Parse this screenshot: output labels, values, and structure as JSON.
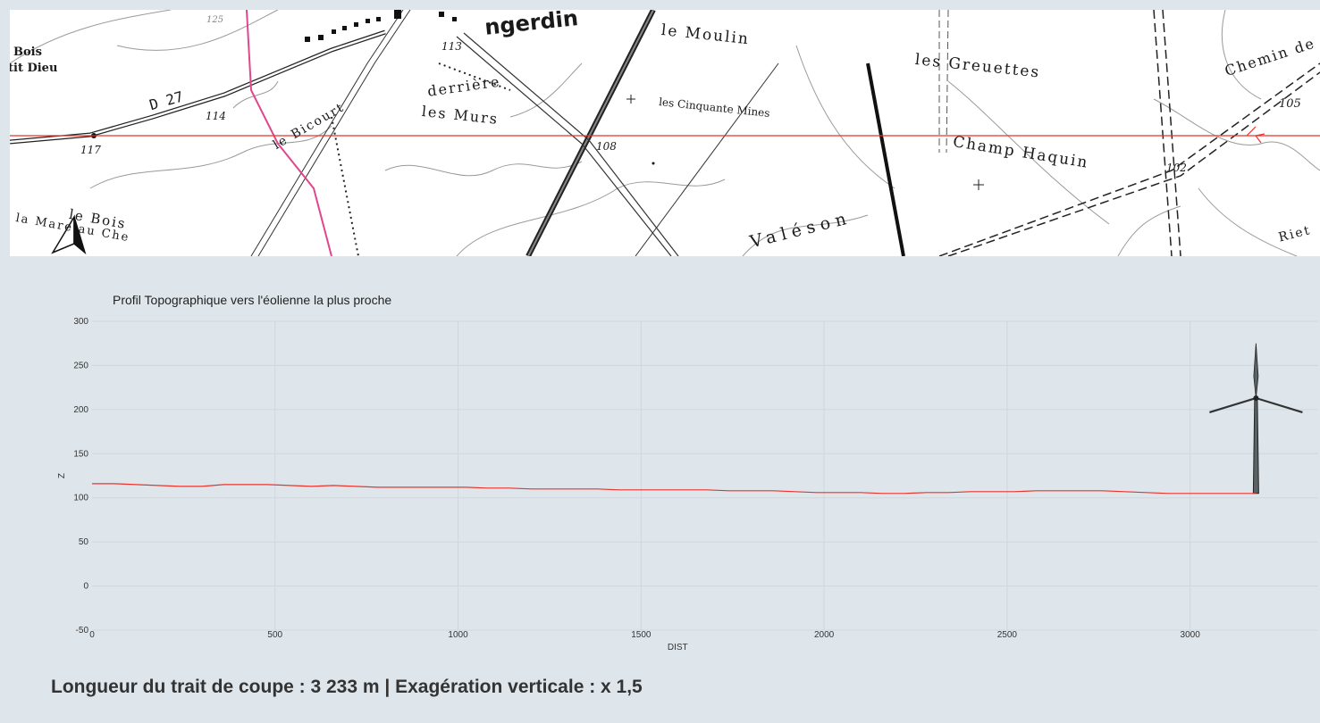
{
  "map": {
    "labels": [
      {
        "text": "le Moulin",
        "name": "map-label-le-moulin"
      },
      {
        "text": "les Greuettes",
        "name": "map-label-les-greuettes"
      },
      {
        "text": "Chemin de",
        "name": "map-label-chemin-de"
      },
      {
        "text": "derrière",
        "name": "map-label-derriere"
      },
      {
        "text": "les Murs",
        "name": "map-label-les-murs"
      },
      {
        "text": "les Cinquante Mines",
        "name": "map-label-cinquante-mines"
      },
      {
        "text": "Champ Haquin",
        "name": "map-label-champ-haquin"
      },
      {
        "text": "Valéson",
        "name": "map-label-valeson"
      },
      {
        "text": "le Bicourt",
        "name": "map-label-le-bicourt"
      },
      {
        "text": "D 27",
        "name": "map-label-d27"
      },
      {
        "text": "Bois",
        "name": "map-label-bois"
      },
      {
        "text": "tit Dieu",
        "name": "map-label-tit-dieu"
      },
      {
        "text": "le Bois",
        "name": "map-label-le-bois"
      },
      {
        "text": "la Mare au Che",
        "name": "map-label-la-mare"
      },
      {
        "text": "Riet",
        "name": "map-label-riet"
      },
      {
        "text": "ngerdin",
        "name": "map-label-ngerdin"
      },
      {
        "text": "108",
        "name": "map-elev-108"
      },
      {
        "text": "113",
        "name": "map-elev-113"
      },
      {
        "text": "114",
        "name": "map-elev-114"
      },
      {
        "text": "117",
        "name": "map-elev-117"
      },
      {
        "text": "102",
        "name": "map-elev-102"
      },
      {
        "text": "105",
        "name": "map-elev-105"
      },
      {
        "text": "125",
        "name": "map-elev-125"
      }
    ],
    "line_color": "#e8342c",
    "boundary_color": "#e0458e"
  },
  "chart_data": {
    "type": "line",
    "title": "Profil Topographique vers l'éolienne la plus proche",
    "xlabel": "DIST",
    "ylabel": "Z",
    "xlim": [
      0,
      3350
    ],
    "ylim": [
      -50,
      300
    ],
    "xticks": [
      0,
      500,
      1000,
      1500,
      2000,
      2500,
      3000
    ],
    "yticks": [
      -50,
      0,
      50,
      100,
      150,
      200,
      250,
      300
    ],
    "grid": true,
    "series": [
      {
        "color": "#e8342c",
        "x": [
          0,
          60,
          120,
          180,
          240,
          300,
          360,
          420,
          480,
          540,
          600,
          660,
          720,
          780,
          840,
          900,
          960,
          1020,
          1080,
          1140,
          1200,
          1260,
          1320,
          1380,
          1440,
          1500,
          1560,
          1620,
          1680,
          1740,
          1800,
          1860,
          1920,
          1980,
          2040,
          2100,
          2160,
          2220,
          2280,
          2340,
          2400,
          2460,
          2520,
          2580,
          2640,
          2700,
          2760,
          2820,
          2880,
          2940,
          3000,
          3060,
          3120,
          3180
        ],
        "y": [
          116,
          116,
          115,
          114,
          113,
          113,
          115,
          115,
          115,
          114,
          113,
          114,
          113,
          112,
          112,
          112,
          112,
          112,
          111,
          111,
          110,
          110,
          110,
          110,
          109,
          109,
          109,
          109,
          109,
          108,
          108,
          108,
          107,
          106,
          106,
          106,
          105,
          105,
          106,
          106,
          107,
          107,
          107,
          108,
          108,
          108,
          108,
          107,
          106,
          105,
          105,
          105,
          105,
          105
        ]
      }
    ],
    "turbine": {
      "x": 3180,
      "base": 105,
      "hub": 213,
      "tip": 275
    }
  },
  "caption": "Longueur du trait de coupe : 3 233 m  |  Exagération verticale : x 1,5"
}
